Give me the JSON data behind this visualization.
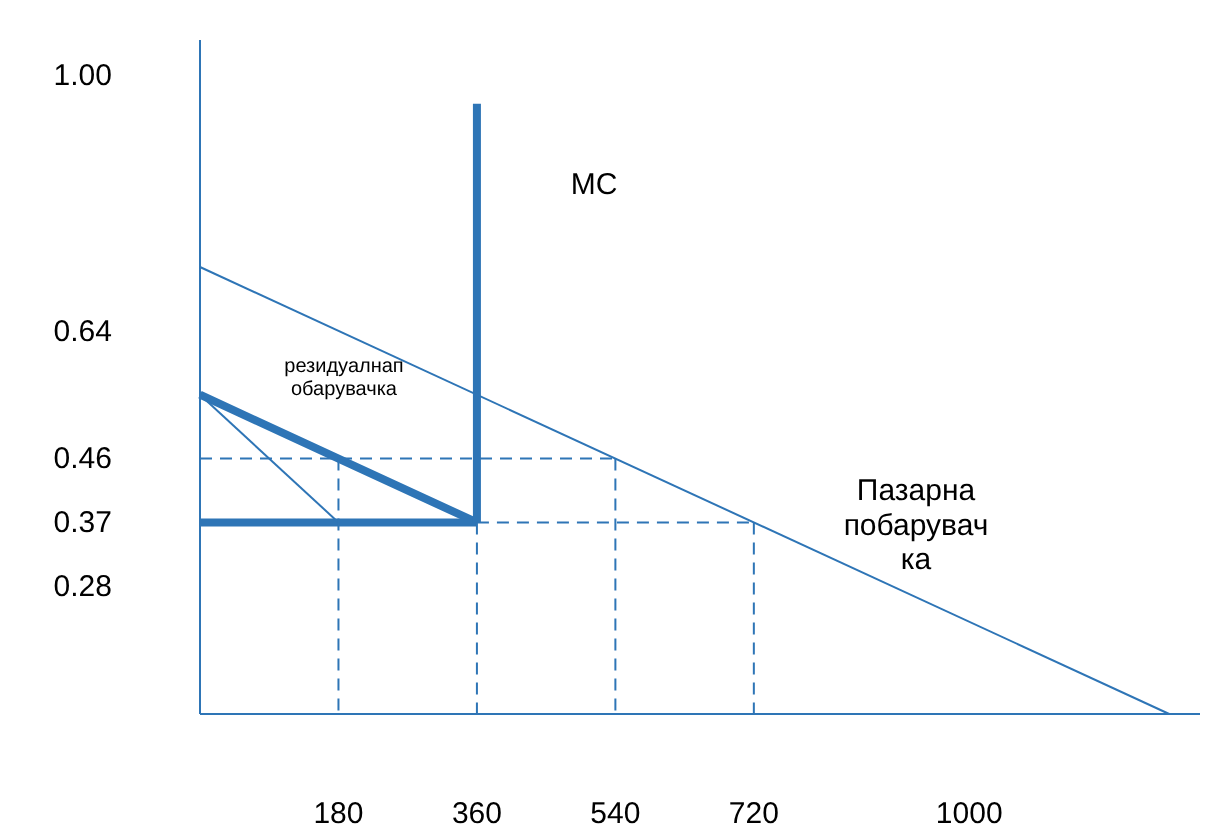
{
  "chart_data": {
    "type": "line",
    "xlim": [
      0,
      1300
    ],
    "ylim": [
      0.1,
      1.05
    ],
    "xticks": [
      180,
      360,
      540,
      720,
      1000
    ],
    "yticks": [
      0.28,
      0.37,
      0.46,
      0.64,
      {
        "value": 1,
        "label": "1.00"
      }
    ],
    "grid": false,
    "marker": "none",
    "series": [
      {
        "color": "#2e75b6",
        "x": [
          0,
          1260
        ],
        "values": [
          0.73,
          0.1
        ]
      },
      {
        "color": "#2e75b6",
        "x": [
          0,
          180,
          360
        ],
        "values": [
          0.55,
          0.46,
          0.37
        ]
      },
      {
        "color": "#2e75b6",
        "x": [
          0,
          360
        ],
        "values": [
          0.37,
          0.37
        ]
      },
      {
        "color": "#2e75b6",
        "x": [
          360,
          360
        ],
        "values": [
          0.37,
          0.96
        ]
      },
      {
        "color": "#2e75b6",
        "x": [
          0,
          180
        ],
        "values": [
          0.55,
          0.37
        ]
      },
      {
        "color": "#2e75b6",
        "x": [
          0,
          540
        ],
        "values": [
          0.46,
          0.46
        ],
        "line_style": "dashed"
      },
      {
        "color": "#2e75b6",
        "x": [
          360,
          720
        ],
        "values": [
          0.37,
          0.37
        ],
        "line_style": "dashed"
      },
      {
        "color": "#2e75b6",
        "x": [
          180,
          180
        ],
        "values": [
          0.46,
          0.1
        ],
        "line_style": "dashed"
      },
      {
        "color": "#2e75b6",
        "x": [
          360,
          360
        ],
        "values": [
          0.37,
          0.1
        ],
        "line_style": "dashed"
      },
      {
        "color": "#2e75b6",
        "x": [
          540,
          540
        ],
        "values": [
          0.46,
          0.1
        ],
        "line_style": "dashed"
      },
      {
        "color": "#2e75b6",
        "x": [
          720,
          720
        ],
        "values": [
          0.37,
          0.1
        ],
        "line_style": "dashed"
      }
    ],
    "annotations": [
      "MC",
      "резидуалнап обарувачка",
      "Пазарна побарувач ка"
    ]
  }
}
